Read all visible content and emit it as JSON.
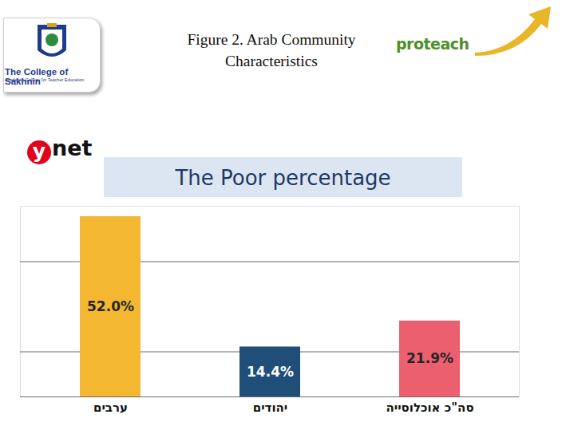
{
  "header": {
    "title_lines": [
      "Figure 2. Arab Community",
      "Characteristics"
    ],
    "logo_left": "The College of Sakhnin",
    "logo_left_sub": "Academic College for Teacher Education",
    "logo_right": "proteach",
    "source_logo": "ynet"
  },
  "chart_data": {
    "type": "bar",
    "title": "The Poor percentage",
    "categories": [
      "ערבים",
      "יהודים",
      "סה\"כ אוכלוסייה"
    ],
    "values": [
      52.0,
      14.4,
      21.9
    ],
    "value_labels": [
      "52.0%",
      "14.4%",
      "21.9%"
    ],
    "colors": [
      "#f4b731",
      "#1f4e79",
      "#eb5f6e"
    ],
    "ylim": [
      0,
      55
    ],
    "yticks": [
      0,
      13,
      39
    ],
    "grid": true,
    "data_labels": true,
    "tick_labels": "x"
  }
}
